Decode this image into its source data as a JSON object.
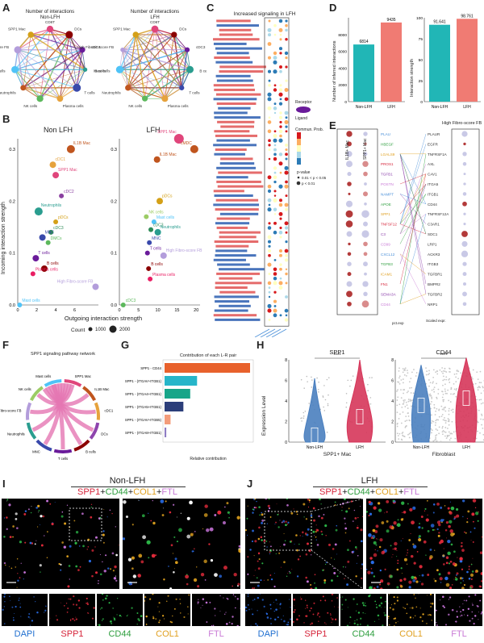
{
  "panels": {
    "A": "A",
    "B": "B",
    "C": "C",
    "D": "D",
    "E": "E",
    "F": "F",
    "G": "G",
    "H": "H",
    "I": "I",
    "J": "J"
  },
  "A": {
    "left_title": "Number of interactions",
    "left_subtitle": "Non-LFH",
    "right_title": "Number of interactions",
    "right_subtitle": "LFH",
    "left_nodes": [
      "CD8T",
      "DCs",
      "cDC3",
      "B cells",
      "T cells",
      "Plasma cells",
      "NK cells",
      "Neutrophils",
      "Mast cells",
      "High Fibrotic-score FB",
      "SPP1 Mac"
    ],
    "right_nodes": [
      "CD8T",
      "DCs",
      "cDC3",
      "B cells",
      "T cells",
      "Plasma cells",
      "NK cells",
      "Neutrophils",
      "Mast cells",
      "High Fibrotic-score FB",
      "SPP1 Mac"
    ]
  },
  "B": {
    "left_title": "Non LFH",
    "right_title": "LFH",
    "ylabel": "Incoming interaction strength",
    "xlabel": "Outgoing interaction strength",
    "count_label": "Count",
    "count_sizes": [
      "1000",
      "2000"
    ],
    "left_points": [
      {
        "label": "IL1B Mac",
        "x": 5.6,
        "y": 0.3,
        "color": "#c0551e",
        "r": 5
      },
      {
        "label": "cDC1",
        "x": 3.7,
        "y": 0.27,
        "color": "#e6a23c",
        "r": 4
      },
      {
        "label": "SPP1 Mac",
        "x": 4.0,
        "y": 0.25,
        "color": "#e0457b",
        "r": 4
      },
      {
        "label": "cDC2",
        "x": 4.6,
        "y": 0.21,
        "color": "#8a3fa0",
        "r": 3
      },
      {
        "label": "Neutrophils",
        "x": 2.2,
        "y": 0.18,
        "color": "#2a9d8f",
        "r": 5
      },
      {
        "label": "pDCs",
        "x": 4.0,
        "y": 0.16,
        "color": "#d4a017",
        "r": 3
      },
      {
        "label": "cDC3",
        "x": 3.5,
        "y": 0.14,
        "color": "#2e8b57",
        "r": 3
      },
      {
        "label": "MNC",
        "x": 2.6,
        "y": 0.13,
        "color": "#3949ab",
        "r": 4
      },
      {
        "label": "DMCs",
        "x": 3.2,
        "y": 0.12,
        "color": "#5cb85c",
        "r": 3
      },
      {
        "label": "T cells",
        "x": 1.9,
        "y": 0.09,
        "color": "#6a1b9a",
        "r": 4
      },
      {
        "label": "B cells",
        "x": 2.8,
        "y": 0.07,
        "color": "#8b0000",
        "r": 4
      },
      {
        "label": "Plasma cells",
        "x": 1.6,
        "y": 0.06,
        "color": "#e91e63",
        "r": 3
      },
      {
        "label": "High Fibro-score FB",
        "x": 8.2,
        "y": 0.035,
        "color": "#b39ddb",
        "r": 4
      },
      {
        "label": "Mast cells",
        "x": 0.2,
        "y": 0.0,
        "color": "#4fc3f7",
        "r": 3
      }
    ],
    "left_xticks": [
      "0",
      "2",
      "4",
      "6"
    ],
    "left_yticks": [
      "0.0",
      "0.1",
      "0.2",
      "0.3"
    ],
    "right_points": [
      {
        "label": "SPP1 Mac",
        "x": 15.5,
        "y": 0.32,
        "color": "#e0457b",
        "r": 6
      },
      {
        "label": "cMDC",
        "x": 19.5,
        "y": 0.3,
        "color": "#c0551e",
        "r": 5
      },
      {
        "label": "IL1B Mac",
        "x": 9.8,
        "y": 0.28,
        "color": "#c0551e",
        "r": 4
      },
      {
        "label": "pDCs",
        "x": 10.5,
        "y": 0.2,
        "color": "#d4a017",
        "r": 4
      },
      {
        "label": "NK cells",
        "x": 7.0,
        "y": 0.17,
        "color": "#9ccc65",
        "r": 3
      },
      {
        "label": "Mast cells",
        "x": 9.0,
        "y": 0.16,
        "color": "#4fc3f7",
        "r": 3
      },
      {
        "label": "cDC3",
        "x": 8.2,
        "y": 0.145,
        "color": "#2e8b57",
        "r": 3
      },
      {
        "label": "Neutrophils",
        "x": 10.0,
        "y": 0.14,
        "color": "#2a9d8f",
        "r": 4
      },
      {
        "label": "MNC",
        "x": 7.8,
        "y": 0.12,
        "color": "#3949ab",
        "r": 3
      },
      {
        "label": "T cells",
        "x": 7.3,
        "y": 0.1,
        "color": "#6a1b9a",
        "r": 3
      },
      {
        "label": "High Fibro-score FB",
        "x": 11.5,
        "y": 0.095,
        "color": "#b39ddb",
        "r": 4
      },
      {
        "label": "B cells",
        "x": 7.6,
        "y": 0.07,
        "color": "#8b0000",
        "r": 3
      },
      {
        "label": "Plasma cells",
        "x": 8.0,
        "y": 0.05,
        "color": "#e91e63",
        "r": 3
      },
      {
        "label": "cDC3",
        "x": 1.0,
        "y": 0.0,
        "color": "#5cb85c",
        "r": 3
      }
    ],
    "right_xticks": [
      "0",
      "5",
      "10",
      "15",
      "20"
    ],
    "right_yticks": [
      "0.0",
      "0.1",
      "0.2",
      "0.3"
    ]
  },
  "C": {
    "title": "Increased signaling in LFH",
    "legend_prob": "Commun. Prob.",
    "legend_pval": "p-value",
    "pval_items": [
      "0.01 < p < 0.05",
      "p < 0.01"
    ],
    "ligand_label": "Ligand",
    "receptor_label": "Receptor"
  },
  "D": {
    "ylabel_left": "Number of inferred interactions",
    "ylabel_right": "Interaction strength",
    "categories": [
      "Non-LFH",
      "LFH"
    ],
    "left_values": [
      6814,
      9435
    ],
    "right_values": [
      91.641,
      98.761
    ],
    "left_labels": [
      "6814",
      "9435"
    ],
    "right_labels": [
      "91.641",
      "98.761"
    ],
    "left_yticks": [
      "0",
      "2000",
      "4000",
      "6000",
      "8000"
    ],
    "right_yticks": [
      "0",
      "25",
      "50",
      "75",
      "100"
    ],
    "colors": [
      "#21b6b6",
      "#f07b73"
    ]
  },
  "E": {
    "left_header": "IL1B+ Mac",
    "mid_header": "SPP1+ Mac",
    "right_header": "High Fibro-score FB",
    "left_genes": [
      "PLAU",
      "HBEGF",
      "LGALS9",
      "PROS1",
      "TGFB1",
      "POSTN",
      "NAMPT",
      "APOE",
      "SPP1",
      "TNFSF12",
      "C3",
      "CD99",
      "CXCL12",
      "TGFB3",
      "ICAM1",
      "FN1",
      "SEMA3A",
      "CD44"
    ],
    "right_genes": [
      "PLAUR",
      "EGFR",
      "TNFRSF1A",
      "AXL",
      "CAV1",
      "ITGA5",
      "ITGB1",
      "CD44",
      "TNFRSF12A",
      "C3AR1",
      "SDC1",
      "LRP1",
      "ACKR3",
      "ITGB3",
      "TGFBR1",
      "BMPR2",
      "TGFBR2",
      "NRP1"
    ],
    "pval_label": "pct.exp",
    "scaled_label": "Scaled expr."
  },
  "F": {
    "title": "SPP1 signaling pathway network",
    "nodes": [
      "SPP1 Mac",
      "IL1B Mac",
      "cDC1",
      "DCs",
      "B cells",
      "T cells",
      "MNC",
      "Neutrophils",
      "High Fibro-score FB",
      "NK cells",
      "Mast cells"
    ]
  },
  "G": {
    "title": "Contribution of each L-R pair",
    "xlabel": "Relative contribution",
    "pairs": [
      {
        "label": "SPP1 - CD44",
        "value": 1.0,
        "color": "#e8612c"
      },
      {
        "label": "SPP1 - (ITGAV+ITGB1)",
        "value": 0.38,
        "color": "#26b5c9"
      },
      {
        "label": "SPP1 - (ITGA4+ITGB1)",
        "value": 0.3,
        "color": "#17a589"
      },
      {
        "label": "SPP1 - (ITGA5+ITGB1)",
        "value": 0.22,
        "color": "#2c3e7a"
      },
      {
        "label": "SPP1 - (ITGAV+ITGB5)",
        "value": 0.07,
        "color": "#f39c7a"
      },
      {
        "label": "SPP1 - (ITGA8+ITGB1)",
        "value": 0.02,
        "color": "#8e7cc3"
      }
    ]
  },
  "H": {
    "left_title": "SPP1",
    "right_title": "CD44",
    "ylabel": "Expression Level",
    "yticks": [
      "0",
      "2",
      "4",
      "6",
      "8"
    ],
    "sig": "****",
    "groups": [
      "Non-LFH",
      "LFH"
    ],
    "left_caption": "SPP1+ Mac",
    "right_caption": "Fibroblast",
    "colors": [
      "#4a7fbf",
      "#d6365a"
    ]
  },
  "I": {
    "group": "Non-LFH",
    "markers": [
      {
        "text": "SPP1",
        "color": "#d6243a"
      },
      {
        "text": "+",
        "color": "#222"
      },
      {
        "text": "CD44",
        "color": "#2e9e3e"
      },
      {
        "text": "+",
        "color": "#222"
      },
      {
        "text": "COL1",
        "color": "#e0a020"
      },
      {
        "text": "+",
        "color": "#222"
      },
      {
        "text": "FTL",
        "color": "#c97ad6"
      }
    ],
    "channels": [
      {
        "text": "DAPI",
        "color": "#1f6fd0"
      },
      {
        "text": "SPP1",
        "color": "#d6243a"
      },
      {
        "text": "CD44",
        "color": "#2e9e3e"
      },
      {
        "text": "COL1",
        "color": "#e0a020"
      },
      {
        "text": "FTL",
        "color": "#c97ad6"
      }
    ]
  },
  "J": {
    "group": "LFH",
    "markers": [
      {
        "text": "SPP1",
        "color": "#d6243a"
      },
      {
        "text": "+",
        "color": "#222"
      },
      {
        "text": "CD44",
        "color": "#2e9e3e"
      },
      {
        "text": "+",
        "color": "#222"
      },
      {
        "text": "COL1",
        "color": "#e0a020"
      },
      {
        "text": "+",
        "color": "#222"
      },
      {
        "text": "FTL",
        "color": "#c97ad6"
      }
    ],
    "channels": [
      {
        "text": "DAPI",
        "color": "#1f6fd0"
      },
      {
        "text": "SPP1",
        "color": "#d6243a"
      },
      {
        "text": "CD44",
        "color": "#2e9e3e"
      },
      {
        "text": "COL1",
        "color": "#e0a020"
      },
      {
        "text": "FTL",
        "color": "#c97ad6"
      }
    ]
  },
  "chart_data": [
    {
      "type": "bar",
      "title": "",
      "categories": [
        "Non-LFH",
        "LFH"
      ],
      "values": [
        6814,
        9435
      ],
      "ylabel": "Number of inferred interactions",
      "ylim": [
        0,
        10000
      ]
    },
    {
      "type": "bar",
      "title": "",
      "categories": [
        "Non-LFH",
        "LFH"
      ],
      "values": [
        91.641,
        98.761
      ],
      "ylabel": "Interaction strength",
      "ylim": [
        0,
        100
      ]
    },
    {
      "type": "scatter",
      "title": "Non LFH",
      "xlabel": "Outgoing interaction strength",
      "ylabel": "Incoming interaction strength"
    },
    {
      "type": "scatter",
      "title": "LFH",
      "xlabel": "Outgoing interaction strength",
      "ylabel": "Incoming interaction strength"
    },
    {
      "type": "bar",
      "title": "Contribution of each L-R pair",
      "categories": [
        "SPP1 - CD44",
        "SPP1 - (ITGAV+ITGB1)",
        "SPP1 - (ITGA4+ITGB1)",
        "SPP1 - (ITGA5+ITGB1)",
        "SPP1 - (ITGAV+ITGB5)",
        "SPP1 - (ITGA8+ITGB1)"
      ],
      "values": [
        1.0,
        0.38,
        0.3,
        0.22,
        0.07,
        0.02
      ],
      "xlabel": "Relative contribution"
    }
  ]
}
